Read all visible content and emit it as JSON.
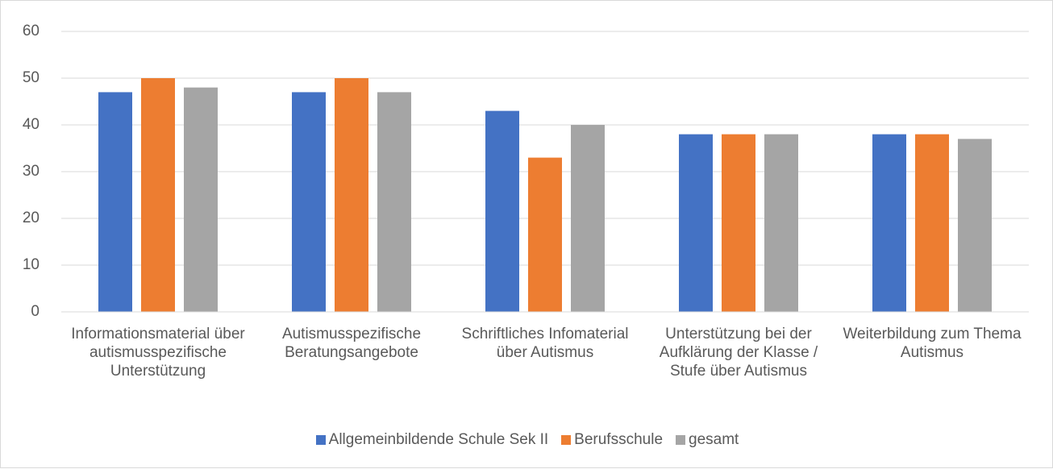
{
  "chart_data": {
    "type": "bar",
    "categories": [
      "Informationsmaterial über autismusspezifische Unterstützung",
      "Autismusspezifische Beratungsangebote",
      "Schriftliches Infomaterial über Autismus",
      "Unterstützung bei der Aufklärung der Klasse / Stufe über Autismus",
      "Weiterbildung zum Thema Autismus"
    ],
    "series": [
      {
        "name": "Allgemeinbildende Schule Sek II",
        "color": "#4472c4",
        "values": [
          47,
          47,
          43,
          38,
          38
        ]
      },
      {
        "name": "Berufsschule",
        "color": "#ed7d31",
        "values": [
          50,
          50,
          33,
          38,
          38
        ]
      },
      {
        "name": "gesamt",
        "color": "#a5a5a5",
        "values": [
          48,
          47,
          40,
          38,
          37
        ]
      }
    ],
    "ylim": [
      0,
      60
    ],
    "yticks": [
      0,
      10,
      20,
      30,
      40,
      50,
      60
    ],
    "grid": true,
    "legend": "bottom"
  }
}
